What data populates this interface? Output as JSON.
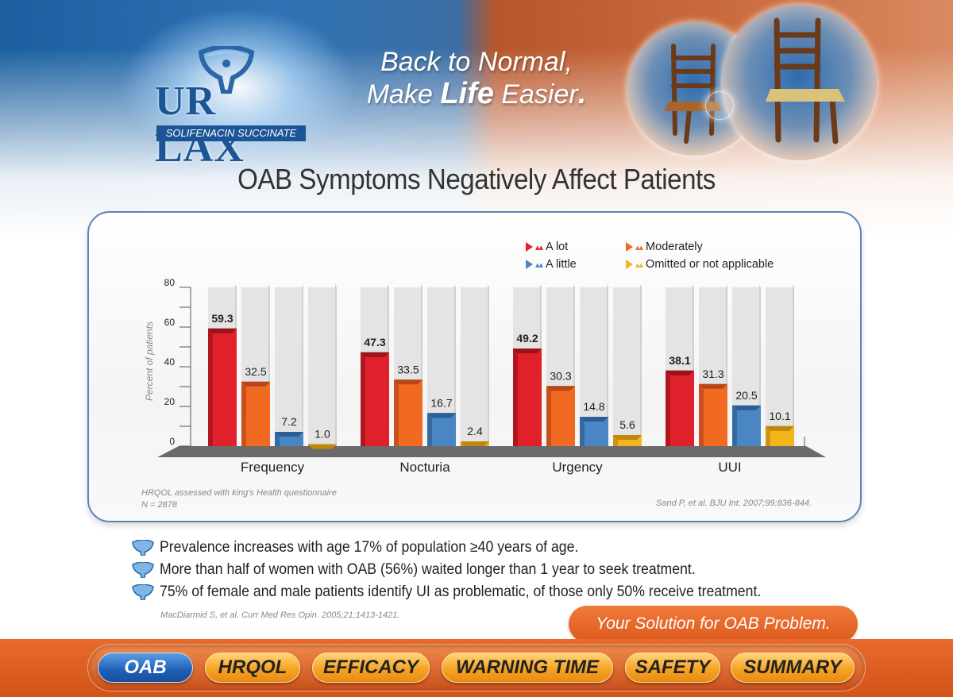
{
  "brand": {
    "name": "UR LAX",
    "subtitle": "SOLIFENACIN SUCCINATE",
    "tagline_line1": "Back to Normal,",
    "tagline_line2_pre": "Make ",
    "tagline_line2_bold": "Life",
    "tagline_line2_post": " Easier",
    "tagline_dot": "."
  },
  "page_title": "OAB Symptoms Negatively Affect Patients",
  "legend": [
    {
      "label": "A lot",
      "color": "#e0212b"
    },
    {
      "label": "Moderately",
      "color": "#f06a22"
    },
    {
      "label": "A little",
      "color": "#4a86c4"
    },
    {
      "label": "Omitted or not applicable",
      "color": "#f2b51c"
    }
  ],
  "chart_data": {
    "type": "bar",
    "title": "OAB Symptoms Negatively Affect Patients",
    "xlabel": "",
    "ylabel": "Percent of patients",
    "ylim": [
      0,
      80
    ],
    "yticks": [
      0,
      20,
      40,
      60,
      80
    ],
    "categories": [
      "Frequency",
      "Nocturia",
      "Urgency",
      "UUI"
    ],
    "series": [
      {
        "name": "A lot",
        "values": [
          59.3,
          47.3,
          49.2,
          38.1
        ]
      },
      {
        "name": "Moderately",
        "values": [
          32.5,
          33.5,
          30.3,
          31.3
        ]
      },
      {
        "name": "A little",
        "values": [
          7.2,
          16.7,
          14.8,
          20.5
        ]
      },
      {
        "name": "Omitted or not applicable",
        "values": [
          1.0,
          2.4,
          5.6,
          10.1
        ]
      }
    ],
    "value_labels": [
      [
        "59.3",
        "32.5",
        "7.2",
        "1.0"
      ],
      [
        "47.3",
        "33.5",
        "16.7",
        "2.4"
      ],
      [
        "49.2",
        "30.3",
        "14.8",
        "5.6"
      ],
      [
        "38.1",
        "31.3",
        "20.5",
        "10.1"
      ]
    ]
  },
  "footnote_left_line1": "HRQOL assessed with king's Health questionnaire",
  "footnote_left_line2": "N = 2878",
  "footnote_right": "Sand P, et al. BJU Int. 2007;99:836-844.",
  "bullets": [
    "Prevalence increases with age 17% of population ≥40 years of age.",
    "More than half of women with OAB (56%) waited longer than 1 year to seek treatment.",
    "75% of female and male patients identify UI as problematic, of those only 50% receive treatment."
  ],
  "reference2": "MacDiarmid S, et al. Curr Med Res Opin. 2005;21;1413-1421.",
  "solution_label": "Your Solution for OAB Problem.",
  "nav": [
    {
      "label": "OAB",
      "active": true
    },
    {
      "label": "HRQOL",
      "active": false
    },
    {
      "label": "EFFICACY",
      "active": false
    },
    {
      "label": "WARNING TIME",
      "active": false
    },
    {
      "label": "SAFETY",
      "active": false
    },
    {
      "label": "SUMMARY",
      "active": false
    }
  ]
}
